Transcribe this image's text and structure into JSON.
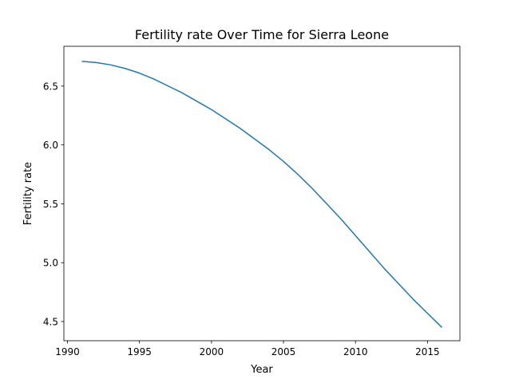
{
  "chart_data": {
    "type": "line",
    "title": "Fertility rate Over Time for Sierra Leone",
    "xlabel": "Year",
    "ylabel": "Fertility rate",
    "xlim": [
      1989.75,
      2017.25
    ],
    "ylim": [
      4.337,
      6.838
    ],
    "xticks": [
      1990,
      1995,
      2000,
      2005,
      2010,
      2015
    ],
    "yticks": [
      4.5,
      5.0,
      5.5,
      6.0,
      6.5
    ],
    "xtick_labels": [
      "1990",
      "1995",
      "2000",
      "2005",
      "2010",
      "2015"
    ],
    "ytick_labels": [
      "4.5",
      "5.0",
      "5.5",
      "6.0",
      "6.5"
    ],
    "grid": false,
    "legend": "none",
    "series": [
      {
        "color": "#1f77b4",
        "x": [
          1991,
          1992,
          1993,
          1994,
          1995,
          1996,
          1997,
          1998,
          1999,
          2000,
          2001,
          2002,
          2003,
          2004,
          2005,
          2006,
          2007,
          2008,
          2009,
          2010,
          2011,
          2012,
          2013,
          2014,
          2015,
          2016
        ],
        "y": [
          6.71,
          6.7,
          6.68,
          6.65,
          6.61,
          6.56,
          6.5,
          6.44,
          6.37,
          6.3,
          6.22,
          6.14,
          6.05,
          5.96,
          5.86,
          5.75,
          5.63,
          5.5,
          5.37,
          5.23,
          5.09,
          4.95,
          4.82,
          4.69,
          4.57,
          4.45
        ]
      }
    ]
  }
}
